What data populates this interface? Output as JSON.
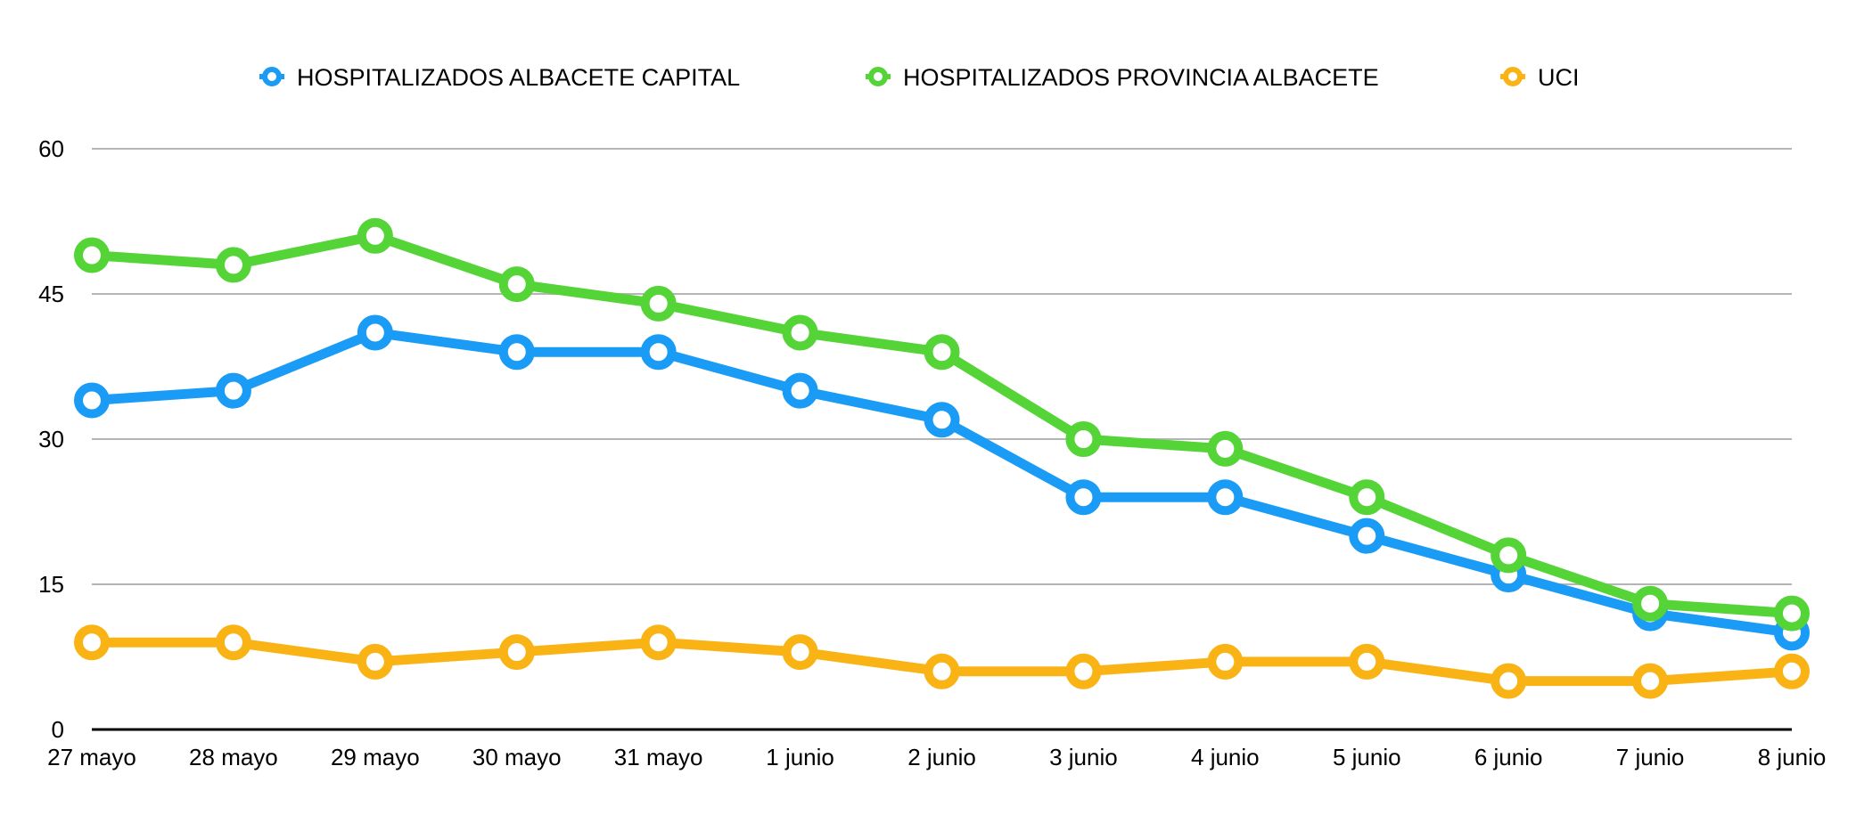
{
  "chart_data": {
    "type": "line",
    "title": "",
    "xlabel": "",
    "ylabel": "",
    "categories": [
      "27 mayo",
      "28 mayo",
      "29 mayo",
      "30 mayo",
      "31 mayo",
      "1 junio",
      "2 junio",
      "3 junio",
      "4 junio",
      "5 junio",
      "6 junio",
      "7 junio",
      "8 junio"
    ],
    "ylim": [
      0,
      60
    ],
    "yticks": [
      0,
      15,
      30,
      45,
      60
    ],
    "grid": true,
    "legend_position": "top",
    "series": [
      {
        "name": "HOSPITALIZADOS ALBACETE CAPITAL",
        "color": "#1a9bf5",
        "values": [
          34,
          35,
          41,
          39,
          39,
          35,
          32,
          24,
          24,
          20,
          16,
          12,
          10
        ]
      },
      {
        "name": "HOSPITALIZADOS PROVINCIA ALBACETE",
        "color": "#55d437",
        "values": [
          49,
          48,
          51,
          46,
          44,
          41,
          39,
          30,
          29,
          24,
          18,
          13,
          12
        ]
      },
      {
        "name": "UCI",
        "color": "#f9b315",
        "values": [
          9,
          9,
          7,
          8,
          9,
          8,
          6,
          6,
          7,
          7,
          5,
          5,
          6
        ]
      }
    ]
  }
}
